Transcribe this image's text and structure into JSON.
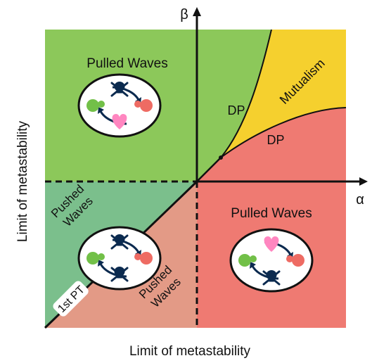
{
  "axes": {
    "x_label": "α",
    "y_label": "β",
    "bottom_label": "Limit of metastability",
    "left_label": "Limit of metastability"
  },
  "regions": {
    "top_left": {
      "title": "Pulled Waves",
      "color": "#8cc85a"
    },
    "bottom_right": {
      "title": "Pulled Waves",
      "color": "#ef7a72"
    },
    "bottom_left_upper": {
      "line1": "Pushed",
      "line2": "Waves",
      "color": "#7bbf8c"
    },
    "bottom_left_lower": {
      "line1": "Pushed",
      "line2": "Waves",
      "color": "#e39a86"
    },
    "mutualism": {
      "label": "Mutualism",
      "color": "#f5d02e"
    },
    "dp_upper": "DP",
    "dp_lower": "DP",
    "transition": "1st PT"
  },
  "icons": {
    "species_a_color": "#72c048",
    "species_b_color": "#ee6b63",
    "heart_color": "#ff86c0",
    "skull_color": "#0b2a4f"
  }
}
